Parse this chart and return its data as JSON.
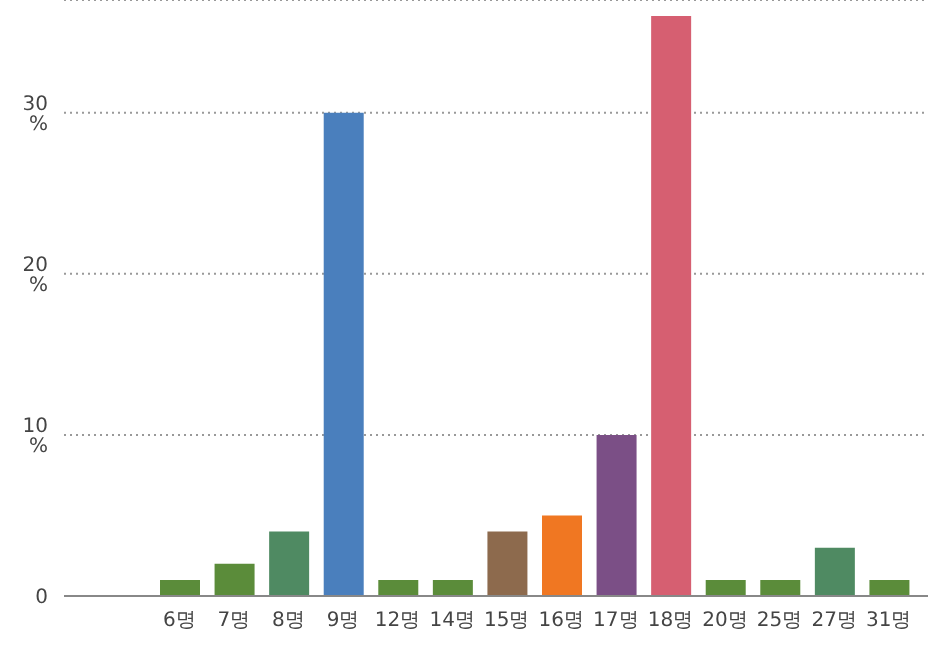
{
  "chart_data": {
    "type": "bar",
    "categories": [
      "6명",
      "7명",
      "8명",
      "9명",
      "12명",
      "14명",
      "15명",
      "16명",
      "17명",
      "18명",
      "20명",
      "25명",
      "27명",
      "31명"
    ],
    "values": [
      1,
      2,
      4,
      30,
      1,
      1,
      4,
      5,
      10,
      36,
      1,
      1,
      3,
      1
    ],
    "colors": [
      "#5b8c3a",
      "#5b8c3a",
      "#4f8a62",
      "#4a7fbd",
      "#5b8c3a",
      "#5b8c3a",
      "#8d6a4d",
      "#f07722",
      "#7b4f86",
      "#d65f71",
      "#5b8c3a",
      "#5b8c3a",
      "#4f8a62",
      "#5b8c3a"
    ],
    "ylim": [
      0,
      37
    ],
    "yticks": [
      0,
      {
        "value": 10,
        "label": "10 %"
      },
      {
        "value": 20,
        "label": "20 %"
      },
      {
        "value": 30,
        "label": "30 %"
      }
    ],
    "grid": "y"
  }
}
